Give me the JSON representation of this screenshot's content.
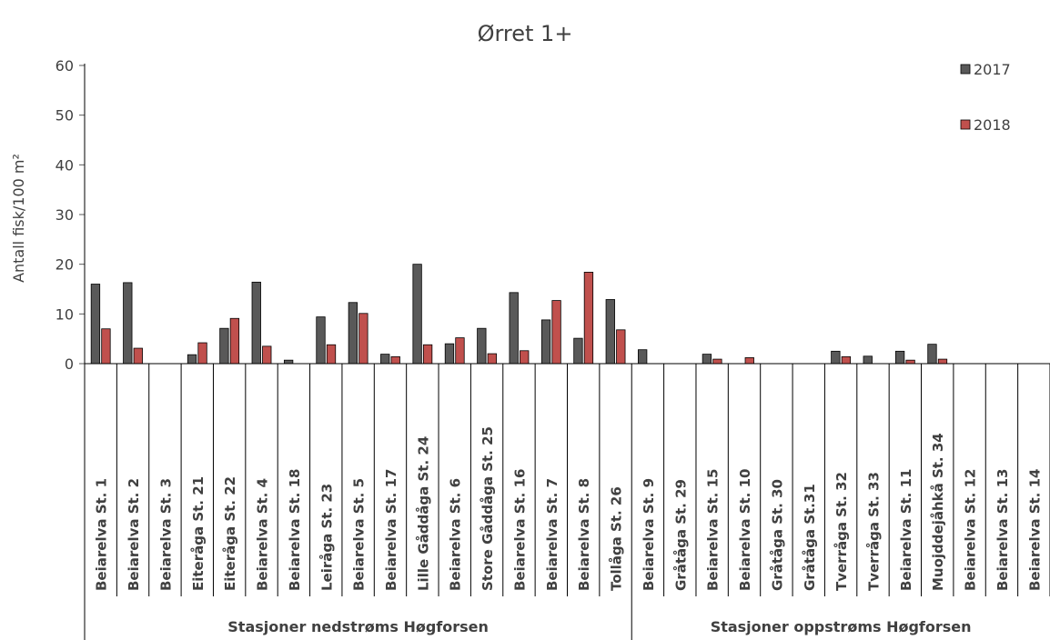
{
  "chart_data": {
    "type": "bar",
    "title": "Ørret 1+",
    "ylabel": "Antall fisk/100 m²",
    "xlabel": "",
    "ylim": [
      0,
      60
    ],
    "yticks": [
      0,
      10,
      20,
      30,
      40,
      50,
      60
    ],
    "grid": false,
    "legend_position": "top-right",
    "categories": [
      "Beiarelva  St. 1",
      "Beiarelva  St. 2",
      "Beiarelva  St. 3",
      "Eiteråga  St. 21",
      "Eiteråga  St. 22",
      "Beiarelva  St. 4",
      "Beiarelva  St. 18",
      "Leiråga  St. 23",
      "Beiarelva  St. 5",
      "Beiarelva  St. 17",
      "Lille Gåddåga  St. 24",
      "Beiarelva  St. 6",
      "Store Gåddåga  St. 25",
      "Beiarelva  St. 16",
      "Beiarelva  St. 7",
      "Beiarelva  St. 8",
      "Tollåga  St. 26",
      "Beiarelva  St. 9",
      "Gråtåga  St. 29",
      "Beiarelva  St. 15",
      "Beiarelva  St. 10",
      "Gråtåga  St. 30",
      "Gråtåga  St.31",
      "Tverråga  St. 32",
      "Tverråga  St. 33",
      "Beiarelva  St. 11",
      "Muojddejåhkå  St. 34",
      "Beiarelva  St. 12",
      "Beiarelva  St. 13",
      "Beiarelva  St. 14"
    ],
    "series": [
      {
        "name": "2017",
        "color": "#595959",
        "values": [
          16,
          16.3,
          0,
          1.8,
          7.1,
          16.4,
          0.7,
          9.4,
          12.3,
          1.9,
          20,
          4,
          7.1,
          14.3,
          8.8,
          5.1,
          12.9,
          2.8,
          0,
          1.9,
          0,
          0,
          0,
          2.5,
          1.5,
          2.5,
          3.9,
          0,
          0,
          0
        ]
      },
      {
        "name": "2018",
        "color": "#c0504d",
        "values": [
          7,
          3.1,
          0,
          4.2,
          9.1,
          3.5,
          0,
          3.8,
          10.1,
          1.4,
          3.8,
          5.2,
          2,
          2.6,
          12.7,
          18.4,
          6.8,
          0,
          0,
          0.9,
          1.2,
          0,
          0,
          1.4,
          0,
          0.7,
          0.9,
          0,
          0,
          0
        ]
      }
    ],
    "groups": [
      {
        "label": "Stasjoner nedstrøms Høgforsen",
        "start": 0,
        "end": 16
      },
      {
        "label": "Stasjoner oppstrøms Høgforsen",
        "start": 17,
        "end": 29
      }
    ]
  }
}
